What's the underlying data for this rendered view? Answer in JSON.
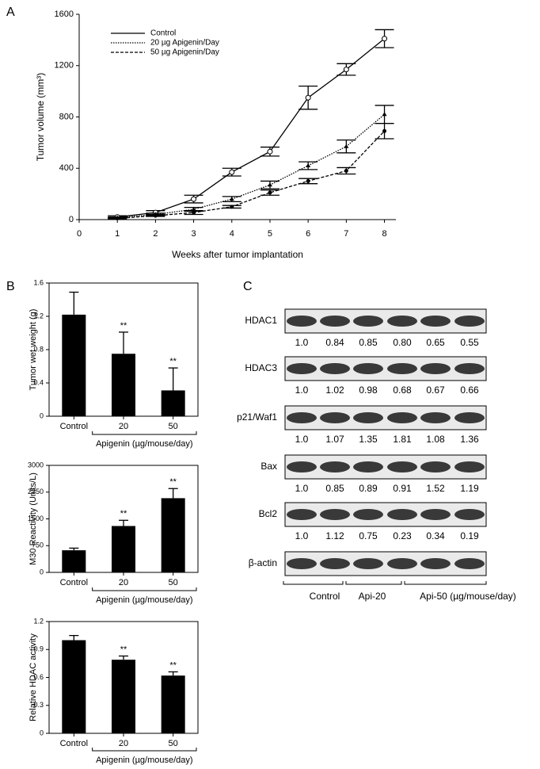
{
  "panel_labels": [
    "A",
    "B",
    "C"
  ],
  "chart_data": [
    {
      "type": "line",
      "ylabel": "Tumor volume (mm³)",
      "xlabel": "Weeks after tumor implantation",
      "x": [
        1,
        2,
        3,
        4,
        5,
        6,
        7,
        8
      ],
      "xlim": [
        0,
        8.3
      ],
      "xticks": [
        0,
        1,
        2,
        3,
        4,
        5,
        6,
        7,
        8
      ],
      "ylim": [
        0,
        1600
      ],
      "yticks": [
        0,
        400,
        800,
        1200,
        1600
      ],
      "series": [
        {
          "name": "Control",
          "color": "#000000",
          "dash": "solid",
          "marker": "open-circle",
          "values": [
            20,
            55,
            160,
            370,
            530,
            950,
            1170,
            1410
          ],
          "errors": [
            10,
            15,
            30,
            30,
            35,
            90,
            45,
            70
          ]
        },
        {
          "name": "20 µg Apigenin/Day",
          "color": "#000000",
          "dash": "dotted",
          "marker": "triangle",
          "values": [
            15,
            40,
            80,
            160,
            270,
            420,
            570,
            820
          ],
          "errors": [
            5,
            10,
            15,
            20,
            30,
            30,
            50,
            70
          ]
        },
        {
          "name": "50 µg Apigenin/Day",
          "color": "#000000",
          "dash": "dashed",
          "marker": "dot",
          "values": [
            10,
            30,
            55,
            100,
            210,
            300,
            380,
            690
          ],
          "errors": [
            5,
            5,
            15,
            10,
            20,
            20,
            25,
            60
          ]
        }
      ]
    },
    {
      "type": "bar",
      "ylabel": "Tumor wet weight (g)",
      "categories": [
        "Control",
        "20",
        "50"
      ],
      "group_label": "Apigenin (µg/mouse/day)",
      "values": [
        1.22,
        0.75,
        0.31
      ],
      "errors": [
        0.27,
        0.26,
        0.27
      ],
      "significance": [
        null,
        "**",
        "**"
      ],
      "color": "#000000",
      "ylim": [
        0,
        1.6
      ],
      "yticks": [
        0,
        0.4,
        0.8,
        1.2,
        1.6
      ]
    },
    {
      "type": "bar",
      "ylabel": "M30 Reactivity (Units/L)",
      "categories": [
        "Control",
        "20",
        "50"
      ],
      "group_label": "Apigenin (µg/mouse/day)",
      "values": [
        620,
        1300,
        2080
      ],
      "errors": [
        60,
        160,
        270
      ],
      "significance": [
        null,
        "**",
        "**"
      ],
      "color": "#000000",
      "ylim": [
        0,
        3000
      ],
      "yticks": [
        0,
        750,
        1500,
        2250,
        3000
      ]
    },
    {
      "type": "bar",
      "ylabel": "Relative HDAC activity",
      "categories": [
        "Control",
        "20",
        "50"
      ],
      "group_label": "Apigenin (µg/mouse/day)",
      "values": [
        1.0,
        0.79,
        0.62
      ],
      "errors": [
        0.05,
        0.04,
        0.04
      ],
      "significance": [
        null,
        "**",
        "**"
      ],
      "color": "#000000",
      "ylim": [
        0,
        1.2
      ],
      "yticks": [
        0,
        0.3,
        0.6,
        0.9,
        1.2
      ]
    }
  ],
  "blot": {
    "rows": [
      {
        "label": "HDAC1",
        "values": [
          "1.0",
          "0.84",
          "0.85",
          "0.80",
          "0.65",
          "0.55"
        ]
      },
      {
        "label": "HDAC3",
        "values": [
          "1.0",
          "1.02",
          "0.98",
          "0.68",
          "0.67",
          "0.66"
        ]
      },
      {
        "label": "p21/Waf1",
        "values": [
          "1.0",
          "1.07",
          "1.35",
          "1.81",
          "1.08",
          "1.36"
        ]
      },
      {
        "label": "Bax",
        "values": [
          "1.0",
          "0.85",
          "0.89",
          "0.91",
          "1.52",
          "1.19"
        ]
      },
      {
        "label": "Bcl2",
        "values": [
          "1.0",
          "1.12",
          "0.75",
          "0.23",
          "0.34",
          "0.19"
        ]
      },
      {
        "label": "β-actin",
        "values": []
      }
    ],
    "groups": [
      "Control",
      "Api-20",
      "Api-50 (µg/mouse/day)"
    ]
  }
}
